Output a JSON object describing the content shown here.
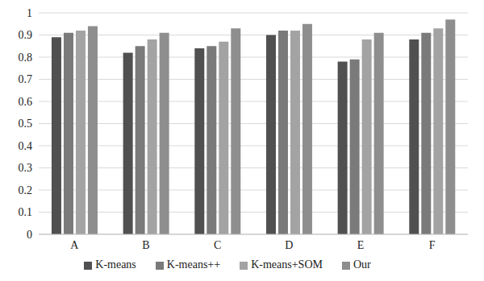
{
  "chart_data": {
    "type": "bar",
    "categories": [
      "A",
      "B",
      "C",
      "D",
      "E",
      "F"
    ],
    "series": [
      {
        "name": "K-means",
        "color": "#505050",
        "values": [
          0.89,
          0.82,
          0.84,
          0.9,
          0.78,
          0.88
        ]
      },
      {
        "name": "K-means++",
        "color": "#7a7a7a",
        "values": [
          0.91,
          0.85,
          0.85,
          0.92,
          0.79,
          0.91
        ]
      },
      {
        "name": "K-means+SOM",
        "color": "#a3a3a3",
        "values": [
          0.92,
          0.88,
          0.87,
          0.92,
          0.88,
          0.93
        ]
      },
      {
        "name": "Our",
        "color": "#8e8e8e",
        "values": [
          0.94,
          0.91,
          0.93,
          0.95,
          0.91,
          0.97
        ]
      }
    ],
    "ylim": [
      0,
      1
    ],
    "yticks": [
      0,
      0.1,
      0.2,
      0.3,
      0.4,
      0.5,
      0.6,
      0.7,
      0.8,
      0.9,
      1
    ],
    "grid": true,
    "legend": "bottom"
  }
}
